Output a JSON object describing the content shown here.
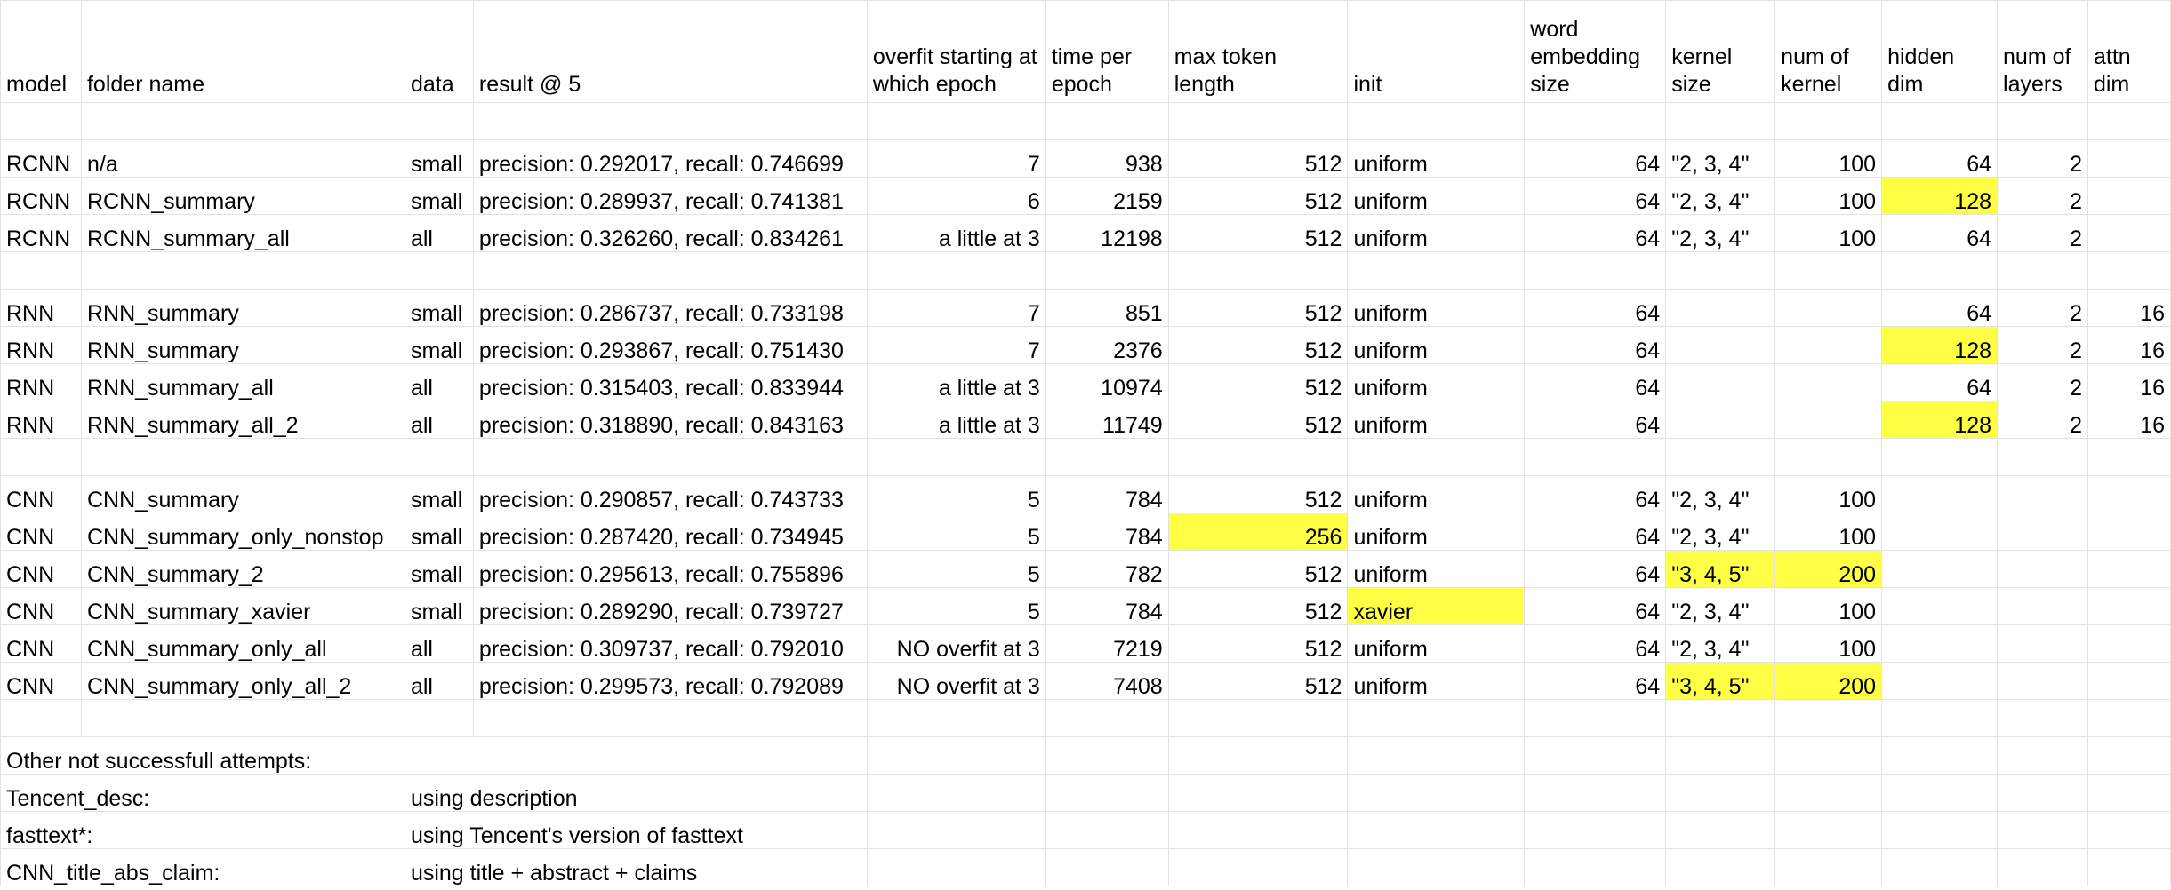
{
  "columns": [
    "model",
    "folder name",
    "data",
    "result @ 5",
    "overfit starting at which epoch",
    "time per epoch",
    "max token length",
    "init",
    "word embedding size",
    "kernel size",
    "num of kernel",
    "hidden dim",
    "num of layers",
    "attn dim"
  ],
  "rows": [
    [
      "RCNN",
      "n/a",
      "small",
      "precision: 0.292017, recall: 0.746699",
      "7",
      "938",
      "512",
      "uniform",
      "64",
      "\"2, 3, 4\"",
      "100",
      "64",
      "2",
      ""
    ],
    [
      "RCNN",
      "RCNN_summary",
      "small",
      "precision: 0.289937, recall: 0.741381",
      "6",
      "2159",
      "512",
      "uniform",
      "64",
      "\"2, 3, 4\"",
      "100",
      "128",
      "2",
      ""
    ],
    [
      "RCNN",
      "RCNN_summary_all",
      "all",
      "precision: 0.326260, recall: 0.834261",
      "a little at 3",
      "12198",
      "512",
      "uniform",
      "64",
      "\"2, 3, 4\"",
      "100",
      "64",
      "2",
      ""
    ],
    [
      "RNN",
      "RNN_summary",
      "small",
      "precision: 0.286737, recall: 0.733198",
      "7",
      "851",
      "512",
      "uniform",
      "64",
      "",
      "",
      "64",
      "2",
      "16"
    ],
    [
      "RNN",
      "RNN_summary",
      "small",
      "precision: 0.293867, recall: 0.751430",
      "7",
      "2376",
      "512",
      "uniform",
      "64",
      "",
      "",
      "128",
      "2",
      "16"
    ],
    [
      "RNN",
      "RNN_summary_all",
      "all",
      "precision: 0.315403, recall: 0.833944",
      "a little at 3",
      "10974",
      "512",
      "uniform",
      "64",
      "",
      "",
      "64",
      "2",
      "16"
    ],
    [
      "RNN",
      "RNN_summary_all_2",
      "all",
      "precision: 0.318890, recall: 0.843163",
      "a little at 3",
      "11749",
      "512",
      "uniform",
      "64",
      "",
      "",
      "128",
      "2",
      "16"
    ],
    [
      "CNN",
      "CNN_summary",
      "small",
      "precision: 0.290857, recall: 0.743733",
      "5",
      "784",
      "512",
      "uniform",
      "64",
      "\"2, 3, 4\"",
      "100",
      "",
      "",
      ""
    ],
    [
      "CNN",
      "CNN_summary_only_nonstop",
      "small",
      "precision: 0.287420, recall: 0.734945",
      "5",
      "784",
      "256",
      "uniform",
      "64",
      "\"2, 3, 4\"",
      "100",
      "",
      "",
      ""
    ],
    [
      "CNN",
      "CNN_summary_2",
      "small",
      "precision: 0.295613, recall: 0.755896",
      "5",
      "782",
      "512",
      "uniform",
      "64",
      "\"3, 4, 5\"",
      "200",
      "",
      "",
      ""
    ],
    [
      "CNN",
      "CNN_summary_xavier",
      "small",
      "precision: 0.289290, recall: 0.739727",
      "5",
      "784",
      "512",
      "xavier",
      "64",
      "\"2, 3, 4\"",
      "100",
      "",
      "",
      ""
    ],
    [
      "CNN",
      "CNN_summary_only_all",
      "all",
      "precision: 0.309737, recall: 0.792010",
      "NO overfit at 3",
      "7219",
      "512",
      "uniform",
      "64",
      "\"2, 3, 4\"",
      "100",
      "",
      "",
      ""
    ],
    [
      "CNN",
      "CNN_summary_only_all_2",
      "all",
      "precision: 0.299573, recall: 0.792089",
      "NO overfit at 3",
      "7408",
      "512",
      "uniform",
      "64",
      "\"3, 4, 5\"",
      "200",
      "",
      "",
      ""
    ]
  ],
  "notes": [
    [
      "Other not successfull attempts:",
      ""
    ],
    [
      "Tencent_desc:",
      "using description"
    ],
    [
      "fasttext*:",
      "using Tencent's version of fasttext"
    ],
    [
      "CNN_title_abs_claim:",
      "using title + abstract + claims"
    ]
  ],
  "highlight_color": "#ffff45"
}
